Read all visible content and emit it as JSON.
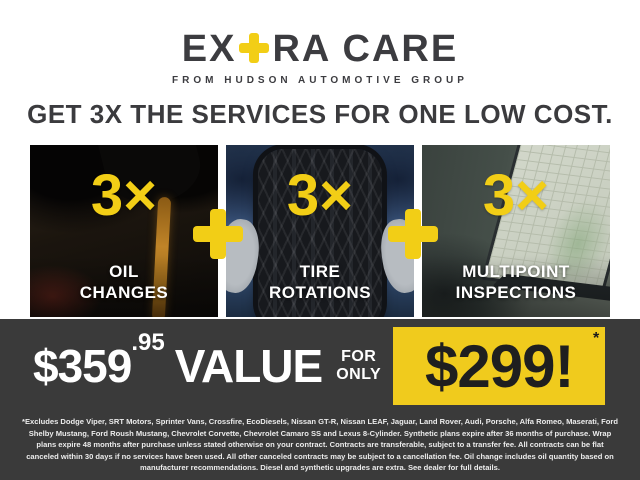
{
  "brand": {
    "logo_part1": "EX",
    "logo_plus": "+",
    "logo_part2": "RA CARE",
    "tagline": "FROM HUDSON AUTOMOTIVE GROUP"
  },
  "headline": "GET 3X THE SERVICES FOR ONE LOW COST.",
  "services": [
    {
      "multiplier": "3×",
      "label_line1": "OIL",
      "label_line2": "CHANGES"
    },
    {
      "multiplier": "3×",
      "label_line1": "TIRE",
      "label_line2": "ROTATIONS"
    },
    {
      "multiplier": "3×",
      "label_line1": "MULTIPOINT",
      "label_line2": "INSPECTIONS"
    }
  ],
  "pricing": {
    "value_price_dollars": "$359",
    "value_price_cents": ".95",
    "value_label": "VALUE",
    "for_only_line1": "FOR",
    "for_only_line2": "ONLY",
    "sale_price": "$299!",
    "sale_price_asterisk": "*"
  },
  "disclaimer": "*Excludes Dodge Viper, SRT Motors, Sprinter Vans, Crossfire, EcoDiesels, Nissan GT-R, Nissan LEAF, Jaguar, Land Rover, Audi, Porsche, Alfa Romeo, Maserati, Ford Shelby Mustang, Ford Roush Mustang, Chevrolet Corvette, Chevrolet Camaro SS and Lexus 8-Cylinder. Synthetic plans expire after 36 months of purchase. Wrap plans expire 48 months after purchase unless stated otherwise on your contract. Contracts are transferable, subject to a transfer fee. All contracts can be flat canceled within 30 days if no services have been used. All other canceled contracts may be subject to a cancellation fee. Oil change includes oil quantity based on manufacturer recommendations. Diesel and synthetic upgrades are extra. See dealer for full details.",
  "colors": {
    "accent_yellow": "#F2CE16",
    "dark_charcoal": "#3A3A3A",
    "text_dark": "#3C3C40",
    "white": "#FFFFFF"
  }
}
